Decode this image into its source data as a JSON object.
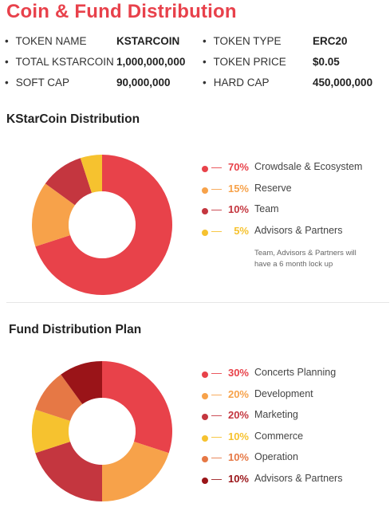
{
  "page_title": "Coin & Fund Distribution",
  "token_info": [
    {
      "label1": "TOKEN NAME",
      "value1": "KSTARCOIN",
      "label2": "TOKEN TYPE",
      "value2": "ERC20"
    },
    {
      "label1": "TOTAL KSTARCOIN",
      "value1": "1,000,000,000",
      "label2": "TOKEN PRICE",
      "value2": "$0.05"
    },
    {
      "label1": "SOFT CAP",
      "value1": "90,000,000",
      "label2": "HARD CAP",
      "value2": "450,000,000"
    }
  ],
  "bullet": "•",
  "dash": "—",
  "note": "Team, Advisors & Partners will have a 6 month lock up",
  "chart_data": [
    {
      "type": "pie",
      "title": "KStarCoin Distribution",
      "series": [
        {
          "label": "Crowdsale & Ecosystem",
          "pct_text": "70%",
          "value": 70,
          "color": "#e8424a"
        },
        {
          "label": "Reserve",
          "pct_text": "15%",
          "value": 15,
          "color": "#f7a24a"
        },
        {
          "label": "Team",
          "pct_text": "10%",
          "value": 10,
          "color": "#c4363f"
        },
        {
          "label": "Advisors & Partners",
          "pct_text": "5%",
          "value": 5,
          "color": "#f6c22f"
        }
      ]
    },
    {
      "type": "pie",
      "title": "Fund Distribution Plan",
      "series": [
        {
          "label": "Concerts Planning",
          "pct_text": "30%",
          "value": 30,
          "color": "#e8424a"
        },
        {
          "label": "Development",
          "pct_text": "20%",
          "value": 20,
          "color": "#f7a24a"
        },
        {
          "label": "Marketing",
          "pct_text": "20%",
          "value": 20,
          "color": "#c4363f"
        },
        {
          "label": "Commerce",
          "pct_text": "10%",
          "value": 10,
          "color": "#f6c22f"
        },
        {
          "label": "Operation",
          "pct_text": "10%",
          "value": 10,
          "color": "#e67845"
        },
        {
          "label": "Advisors & Partners",
          "pct_text": "10%",
          "value": 10,
          "color": "#9a1418"
        }
      ]
    }
  ]
}
